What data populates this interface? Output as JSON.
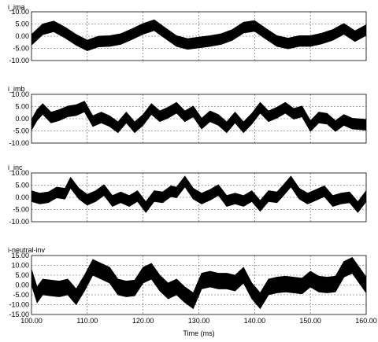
{
  "chart_data": [
    {
      "type": "line",
      "title": "i_ima",
      "xlabel": "",
      "xlim": [
        100,
        160
      ],
      "ylim": [
        -10,
        10
      ],
      "y_ticks": [
        "10.00",
        "5.00",
        "0.00",
        "-5.00",
        "-10.00"
      ],
      "grid": true,
      "series": [
        {
          "color": "#000000",
          "band_width": 2.2,
          "x": [
            100,
            102,
            104,
            106,
            108,
            110,
            112,
            114,
            116,
            118,
            120,
            122,
            124,
            126,
            128,
            130,
            132,
            134,
            136,
            138,
            140,
            142,
            144,
            146,
            148,
            150,
            152,
            154,
            156,
            158,
            160
          ],
          "values": [
            -1.5,
            2.8,
            4.0,
            1.5,
            -1.5,
            -3.8,
            -2.2,
            -2.0,
            -1.2,
            0.8,
            3.0,
            4.5,
            1.2,
            -2.0,
            -3.2,
            -2.6,
            -2.0,
            -1.2,
            0.5,
            3.5,
            4.2,
            1.0,
            -2.0,
            -3.0,
            -2.0,
            -2.0,
            -1.0,
            0.5,
            3.0,
            0.0,
            2.5
          ]
        }
      ]
    },
    {
      "type": "line",
      "title": "i_imb",
      "xlabel": "",
      "xlim": [
        100,
        160
      ],
      "ylim": [
        -10,
        10
      ],
      "y_ticks": [
        "10.00",
        "5.00",
        "0.00",
        "-5.00",
        "-10.00"
      ],
      "grid": true,
      "series": [
        {
          "color": "#000000",
          "band_width": 2.2,
          "x": [
            100,
            101,
            102,
            103.5,
            105,
            106.5,
            108,
            109.5,
            111,
            112.5,
            114,
            115.5,
            117,
            118.5,
            120,
            121.5,
            123,
            124.5,
            126,
            127.5,
            129,
            130.5,
            132,
            133.5,
            135,
            136.5,
            138,
            139.5,
            141,
            142.5,
            144,
            145.5,
            147,
            148.5,
            150,
            151.5,
            153,
            154.5,
            156,
            157.5,
            160
          ],
          "values": [
            -2.5,
            1.5,
            4.0,
            0.5,
            1.5,
            3.0,
            3.5,
            5.0,
            -1.0,
            0.5,
            -1.0,
            -3.5,
            0.5,
            -3.5,
            -0.5,
            4.0,
            1.0,
            2.5,
            4.5,
            1.0,
            3.0,
            -2.0,
            1.0,
            -0.5,
            -3.5,
            0.5,
            -3.5,
            0.0,
            4.5,
            1.0,
            2.5,
            4.5,
            2.0,
            3.0,
            -3.0,
            0.5,
            0.0,
            -3.0,
            -0.5,
            -2.0,
            -2.5
          ]
        }
      ]
    },
    {
      "type": "line",
      "title": "i_inc",
      "xlabel": "",
      "xlim": [
        100,
        160
      ],
      "ylim": [
        -10,
        10
      ],
      "y_ticks": [
        "10.00",
        "5.00",
        "0.00",
        "-5.00",
        "-10.00"
      ],
      "grid": true,
      "series": [
        {
          "color": "#000000",
          "band_width": 2.2,
          "x": [
            100,
            101.5,
            103,
            104.5,
            106,
            107,
            108.5,
            110,
            111.5,
            113,
            114.5,
            116,
            117.5,
            119,
            120.5,
            122,
            123.5,
            125,
            126,
            127.5,
            129,
            130.5,
            132,
            133.5,
            135,
            136.5,
            138,
            139.5,
            141,
            142.5,
            144,
            145,
            146.5,
            148,
            149.5,
            151,
            152.5,
            154,
            155.5,
            157,
            158.5,
            160
          ],
          "values": [
            0.5,
            -0.5,
            0.0,
            2.0,
            1.5,
            6.0,
            1.5,
            -1.0,
            0.5,
            3.0,
            -1.5,
            0.0,
            -1.5,
            0.5,
            -4.0,
            0.5,
            0.0,
            2.5,
            2.0,
            6.5,
            1.5,
            -0.5,
            1.0,
            3.0,
            -1.5,
            -0.5,
            -1.5,
            0.5,
            -3.5,
            0.5,
            0.0,
            2.5,
            6.5,
            1.5,
            -0.5,
            1.0,
            2.5,
            -1.5,
            -0.5,
            0.0,
            -4.0,
            0.5
          ]
        }
      ]
    },
    {
      "type": "line",
      "title": "i-neutral-inv",
      "xlabel": "Time  (ms)",
      "xlim": [
        100,
        160
      ],
      "ylim": [
        -15,
        15
      ],
      "y_ticks": [
        "15.00",
        "10.00",
        "5.00",
        "0.00",
        "-5.00",
        "-10.00",
        "-15.00"
      ],
      "x_ticks": [
        "100.00",
        "110.00",
        "120.00",
        "130.00",
        "140.00",
        "150.00",
        "160.00"
      ],
      "grid": true,
      "series": [
        {
          "color": "#000000",
          "band_width": 4.0,
          "x": [
            100,
            101,
            102,
            103.5,
            105,
            106.5,
            108,
            109.5,
            111,
            112.5,
            114,
            115.5,
            117,
            118.5,
            120,
            121.5,
            123,
            124.5,
            126,
            127.5,
            129,
            130.5,
            132,
            133.5,
            135,
            136.5,
            138,
            139.5,
            141,
            142.5,
            144,
            145.5,
            147,
            148.5,
            150,
            151.5,
            153,
            154.5,
            156,
            157.5,
            160
          ],
          "values": [
            4.0,
            -5.0,
            -1.0,
            -1.5,
            -2.0,
            -1.0,
            -6.0,
            1.0,
            9.0,
            7.0,
            5.0,
            -1.0,
            -2.0,
            -1.5,
            5.0,
            7.0,
            1.0,
            -3.0,
            -1.0,
            -5.0,
            -8.0,
            2.0,
            3.0,
            2.0,
            2.0,
            1.0,
            5.0,
            -3.0,
            -8.0,
            -1.0,
            0.0,
            0.5,
            0.0,
            -0.5,
            3.0,
            0.5,
            0.0,
            0.5,
            8.0,
            10.0,
            0.0
          ]
        }
      ]
    }
  ]
}
